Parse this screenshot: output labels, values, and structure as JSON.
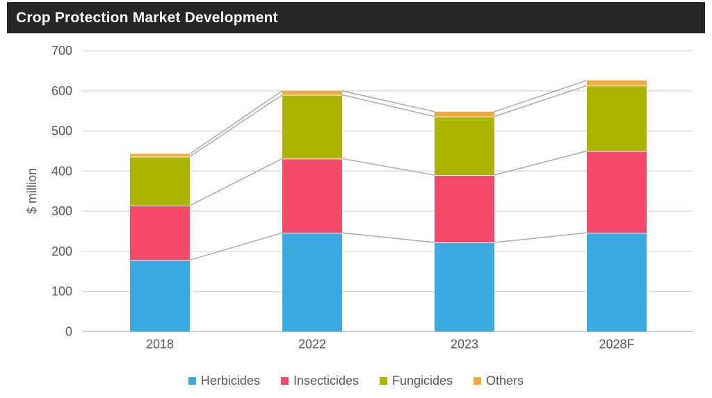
{
  "title": "Crop Protection Market Development",
  "chart_data": {
    "type": "bar",
    "stacked": true,
    "title": "Crop Protection Market Development",
    "categories": [
      "2018",
      "2022",
      "2023",
      "2028F"
    ],
    "series": [
      {
        "name": "Herbicides",
        "color": "#3BAAE0",
        "values": [
          178,
          246,
          222,
          246
        ]
      },
      {
        "name": "Insecticides",
        "color": "#F54A69",
        "values": [
          136,
          185,
          168,
          204
        ]
      },
      {
        "name": "Fungicides",
        "color": "#ABB400",
        "values": [
          122,
          159,
          146,
          163
        ]
      },
      {
        "name": "Others",
        "color": "#F0A93C",
        "values": [
          7,
          10,
          12,
          13
        ]
      }
    ],
    "xlabel": "",
    "ylabel": "$ million",
    "ylim": [
      0,
      700
    ],
    "yticks": [
      0,
      100,
      200,
      300,
      400,
      500,
      600,
      700
    ],
    "grid": true,
    "series_lines": true,
    "legend_position": "bottom"
  },
  "colors": {
    "title_bg": "#262626",
    "title_text": "#FFFFFF",
    "axis_text": "#595959",
    "gridline": "#D9D9D9",
    "baseline": "#BFBFBF",
    "series_line": "#A6A6A6",
    "background": "#FFFFFF"
  }
}
